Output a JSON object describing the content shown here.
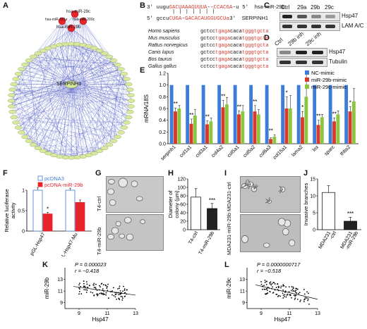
{
  "panels": {
    "A": "A",
    "B": "B",
    "C": "C",
    "D": "D",
    "E": "E",
    "F": "F",
    "G": "G",
    "H": "H",
    "I": "I",
    "J": "J",
    "K": "K",
    "L": "L"
  },
  "network": {
    "hub_labels": [
      "hsa-miR-29c",
      "hsa-miR-181a",
      "hsa-miR-200c",
      "hsa-miR-29b"
    ],
    "center_label": "SERPINH1",
    "colors": {
      "mirna": "#e8242b",
      "gene": "#d8e8a0",
      "edge": "#2f3fb8"
    }
  },
  "sequence": {
    "line1_prefix": "3' uugu",
    "line1_red": "GACUAAAGUUUA",
    "line1_mid": "--",
    "line1_red2": "CCACGA",
    "line1_suffix": "-u 5'",
    "line1_label": "hsa-miR-29b",
    "bars": "| | | | | | |",
    "line2_prefix": "5' gccu",
    "line2_red": "CUGA",
    "line2_mid": "-",
    "line2_rest": "GACACAUGGUGCUa",
    "line2_suffix": "3'",
    "line2_label": "SERPINH1",
    "species": [
      {
        "name": "Homo sapiens",
        "seq": "gctcctgagacacatgggtgcta"
      },
      {
        "name": "Mus musculus",
        "seq": "gctcctgagacacatgggtgcta"
      },
      {
        "name": "Rattus norvegicus",
        "seq": "gctcctgagacacatgggtgcta"
      },
      {
        "name": "Canis lupus",
        "seq": "gctcctgagacacatgggtgcta"
      },
      {
        "name": "Bos taurus",
        "seq": "gctcctgagacacatgggtgcta"
      },
      {
        "name": "Gallus gallus",
        "seq": "cctcctgagacacatgggtgcta"
      }
    ]
  },
  "blot_c": {
    "columns": [
      "Ctrl",
      "29a",
      "29b",
      "29c"
    ],
    "rows": [
      "Hsp47",
      "LAM A/C"
    ]
  },
  "blot_d": {
    "columns": [
      "Ctrl",
      "29b inh",
      "29c inh"
    ],
    "rows": [
      "Hsp47",
      "Tubulin"
    ]
  },
  "chart_data": [
    {
      "panel": "E",
      "type": "bar",
      "ylabel": "mRNA/18S",
      "ylim": [
        0,
        1.2
      ],
      "yticks": [
        "0.0",
        "0.2",
        "0.4",
        "0.6",
        "0.8",
        "1.0",
        "1.2"
      ],
      "categories": [
        "serpinh1",
        "col1a1",
        "col3a1",
        "col4a2",
        "col5a1",
        "col5a2",
        "col6a3",
        "col15a1",
        "lama2",
        "lox",
        "sparc",
        "thbs2"
      ],
      "series": [
        {
          "name": "NC-mimic",
          "color": "#3b7dd8",
          "values": [
            1,
            1,
            1,
            1,
            1,
            1,
            1,
            1,
            1,
            1,
            1,
            1
          ],
          "errors": [
            0,
            0,
            0,
            0,
            0,
            0,
            0,
            0,
            0,
            0,
            0,
            0
          ]
        },
        {
          "name": "miR-29b-mimic",
          "color": "#d7392b",
          "values": [
            0.55,
            0.34,
            0.33,
            0.62,
            0.5,
            0.55,
            0.08,
            0.6,
            0.45,
            0.32,
            0.38,
            0.55
          ],
          "errors": [
            0.06,
            0.08,
            0.06,
            0.12,
            0.06,
            0.1,
            0.02,
            0.2,
            0.1,
            0.08,
            0.06,
            0.08
          ]
        },
        {
          "name": "miR-29c-mimic",
          "color": "#8cc63f",
          "values": [
            0.6,
            0.48,
            0.38,
            0.67,
            0.55,
            0.5,
            0.12,
            0.6,
            0.8,
            0.45,
            0.5,
            0.72
          ],
          "errors": [
            0.05,
            0.1,
            0.06,
            0.12,
            0.1,
            0.08,
            0.03,
            0.22,
            0.4,
            0.05,
            0.06,
            0.22
          ]
        }
      ],
      "annotations": [
        "**",
        "**",
        "**",
        "**",
        "**",
        "**",
        "**",
        "*",
        "*",
        "**",
        "**",
        "*"
      ]
    },
    {
      "panel": "F",
      "type": "bar",
      "ylabel": "Relative luciferase activity",
      "ylim": [
        0,
        1.0
      ],
      "yticks": [
        "0",
        "0.5",
        "1"
      ],
      "categories": [
        "pGL-Hsp47",
        "pGL-Hsp47-Mu"
      ],
      "series": [
        {
          "name": "pcDNA3",
          "color": "#ffffff",
          "values": [
            1,
            1
          ],
          "errors": [
            0.06,
            0.05
          ]
        },
        {
          "name": "pcDNA-miR-29b",
          "color": "#e8242b",
          "values": [
            0.42,
            0.7
          ],
          "errors": [
            0.04,
            0.06
          ]
        }
      ],
      "annotations": [
        "*",
        ""
      ]
    },
    {
      "panel": "H",
      "type": "bar",
      "ylabel": "Diameter of colony (µm)",
      "ylim": [
        0,
        120
      ],
      "yticks": [
        "0",
        "20",
        "40",
        "60",
        "80",
        "100",
        "120"
      ],
      "categories": [
        "T4-ctrl",
        "T4-miR-29b"
      ],
      "series": [
        {
          "name": "",
          "color": "#ffffff",
          "values": [
            77,
            50
          ],
          "errors": [
            20,
            12
          ]
        }
      ],
      "fill_colors": [
        "#ffffff",
        "#222222"
      ],
      "annotations": [
        "",
        "***"
      ]
    },
    {
      "panel": "J",
      "type": "bar",
      "ylabel": "Invasive branches",
      "ylim": [
        0,
        15
      ],
      "yticks": [
        "0",
        "5",
        "10",
        "15"
      ],
      "categories": [
        "MDA231 -ctrl",
        "MDA231 -miR-29b"
      ],
      "series": [
        {
          "name": "",
          "color": "#ffffff",
          "values": [
            11,
            2.5
          ],
          "errors": [
            2,
            1.2
          ]
        }
      ],
      "fill_colors": [
        "#ffffff",
        "#222222"
      ],
      "annotations": [
        "",
        "***"
      ]
    },
    {
      "panel": "K",
      "type": "scatter",
      "xlabel": "Hsp47",
      "ylabel": "miR-29b",
      "xlim": [
        8,
        13
      ],
      "ylim": [
        8,
        15
      ],
      "xticks": [
        "9",
        "11",
        "13"
      ],
      "yticks": [
        "9",
        "11",
        "13"
      ],
      "stat_p": "P = 0.000023",
      "stat_r": "r = −0.418",
      "fit": {
        "x0": 8,
        "y0": 12.0,
        "x1": 13,
        "y1": 10.3
      }
    },
    {
      "panel": "L",
      "type": "scatter",
      "xlabel": "Hsp47",
      "ylabel": "miR-29c",
      "xlim": [
        8,
        13
      ],
      "ylim": [
        8,
        15
      ],
      "xticks": [
        "9",
        "11",
        "13"
      ],
      "yticks": [
        "9",
        "11",
        "13"
      ],
      "stat_p": "P = 0.0000000717",
      "stat_r": "r = −0.518",
      "fit": {
        "x0": 8,
        "y0": 12.4,
        "x1": 13,
        "y1": 9.6
      }
    }
  ],
  "micro": {
    "G_labels": [
      "T4-ctrl",
      "T4-miR-29b"
    ],
    "I_labels": [
      "MDA231-ctrl",
      "MDA231-miR-29b"
    ]
  }
}
